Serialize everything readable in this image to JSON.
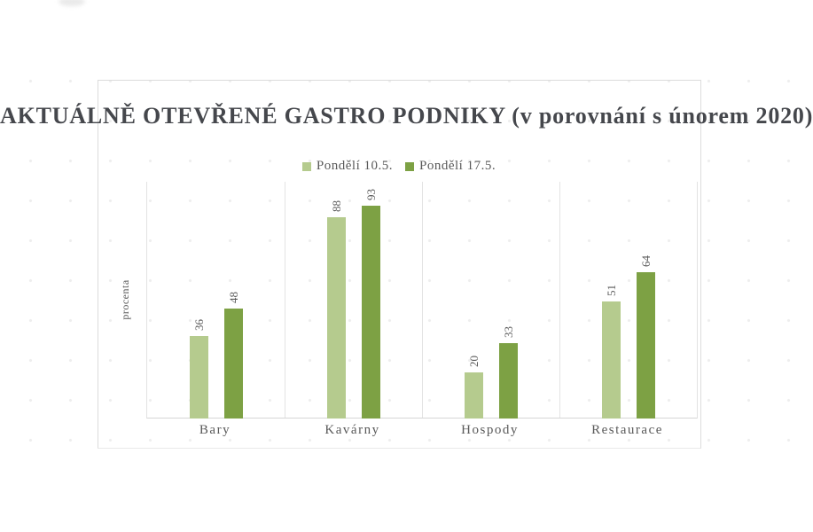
{
  "title": "AKTUÁLNĚ OTEVŘENÉ GASTRO PODNIKY (v porovnání s únorem 2020)",
  "colors": {
    "series1": "#b5cb8e",
    "series2": "#7da144",
    "title_text": "#45474c",
    "label_text": "#595959",
    "grid": "#e3e3e3",
    "axis": "#d6d6d6"
  },
  "chart_data": {
    "type": "bar",
    "title": "AKTUÁLNĚ OTEVŘENÉ GASTRO PODNIKY (v porovnání s únorem 2020)",
    "xlabel": "",
    "ylabel": "procenta",
    "categories": [
      "Bary",
      "Kavárny",
      "Hospody",
      "Restaurace"
    ],
    "series": [
      {
        "name": "Pondělí 10.5.",
        "color": "#b5cb8e",
        "values": [
          36,
          88,
          20,
          51
        ]
      },
      {
        "name": "Pondělí 17.5.",
        "color": "#7da144",
        "values": [
          48,
          93,
          33,
          64
        ]
      }
    ],
    "ylim": [
      0,
      100
    ],
    "yticks_visible": false,
    "grid": "vertical category dividers only",
    "legend_position": "top center",
    "data_labels": "values rotated 90° above each bar"
  }
}
